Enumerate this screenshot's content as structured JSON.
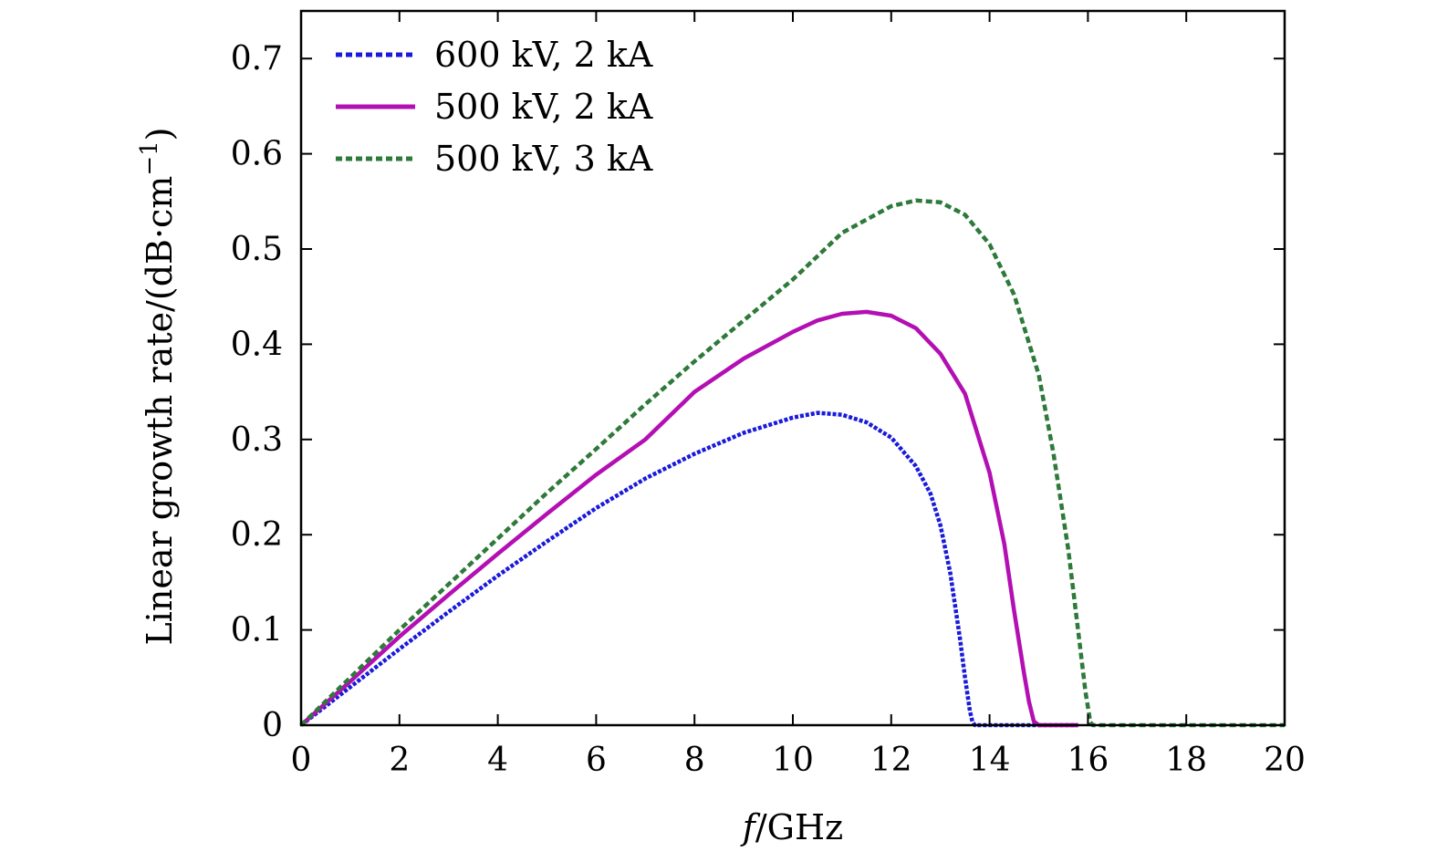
{
  "chart_data": {
    "type": "line",
    "title": "",
    "xlabel_italic": "f",
    "xlabel_rest": "/GHz",
    "ylabel": "Linear growth rate/(dB·cm",
    "ylabel_exp": "−1",
    "ylabel_close": ")",
    "xlim": [
      0,
      20
    ],
    "ylim": [
      0,
      0.75
    ],
    "xticks": [
      0,
      2,
      4,
      6,
      8,
      10,
      12,
      14,
      16,
      18,
      20
    ],
    "xtick_labels": [
      "0",
      "2",
      "4",
      "6",
      "8",
      "10",
      "12",
      "14",
      "16",
      "18",
      "20"
    ],
    "yticks": [
      0,
      0.1,
      0.2,
      0.3,
      0.4,
      0.5,
      0.6,
      0.7
    ],
    "ytick_labels": [
      "0",
      "0.1",
      "0.2",
      "0.3",
      "0.4",
      "0.5",
      "0.6",
      "0.7"
    ],
    "grid": false,
    "legend_position": "top-left",
    "series": [
      {
        "name": "600 kV, 2 kA",
        "color": "#1a1adb",
        "style": "dotted",
        "x": [
          0,
          1,
          2,
          3,
          4,
          5,
          6,
          7,
          8,
          9,
          10,
          10.5,
          11,
          11.5,
          12,
          12.5,
          12.8,
          13.0,
          13.2,
          13.4,
          13.5,
          13.6,
          13.65,
          13.7,
          14,
          15,
          15.8
        ],
        "y": [
          0,
          0.04,
          0.08,
          0.119,
          0.157,
          0.193,
          0.228,
          0.259,
          0.285,
          0.307,
          0.323,
          0.328,
          0.326,
          0.318,
          0.302,
          0.272,
          0.243,
          0.21,
          0.16,
          0.09,
          0.05,
          0.015,
          0.004,
          0,
          0,
          0,
          0
        ]
      },
      {
        "name": "500 kV, 2 kA",
        "color": "#b30fb3",
        "style": "solid",
        "x": [
          0,
          1,
          2,
          3,
          4,
          5,
          6,
          7,
          8,
          9,
          10,
          10.5,
          11,
          11.5,
          12,
          12.5,
          13,
          13.5,
          14,
          14.3,
          14.5,
          14.7,
          14.8,
          14.9,
          15,
          15.8
        ],
        "y": [
          0,
          0.046,
          0.093,
          0.137,
          0.18,
          0.222,
          0.263,
          0.3,
          0.35,
          0.385,
          0.413,
          0.425,
          0.432,
          0.434,
          0.43,
          0.417,
          0.39,
          0.348,
          0.265,
          0.19,
          0.12,
          0.055,
          0.025,
          0.004,
          0,
          0
        ]
      },
      {
        "name": "500 kV, 3 kA",
        "color": "#2e7a3a",
        "style": "dashed",
        "x": [
          0,
          1,
          2,
          3,
          4,
          5,
          6,
          7,
          8,
          9,
          10,
          11,
          12,
          12.5,
          13,
          13.5,
          14,
          14.5,
          15,
          15.3,
          15.6,
          15.8,
          15.95,
          16.05,
          16.1,
          17,
          18,
          19,
          20
        ],
        "y": [
          0,
          0.05,
          0.1,
          0.148,
          0.196,
          0.244,
          0.29,
          0.337,
          0.382,
          0.425,
          0.468,
          0.517,
          0.545,
          0.551,
          0.549,
          0.536,
          0.505,
          0.452,
          0.368,
          0.285,
          0.185,
          0.1,
          0.035,
          0.003,
          0,
          0,
          0,
          0,
          0
        ]
      }
    ]
  }
}
